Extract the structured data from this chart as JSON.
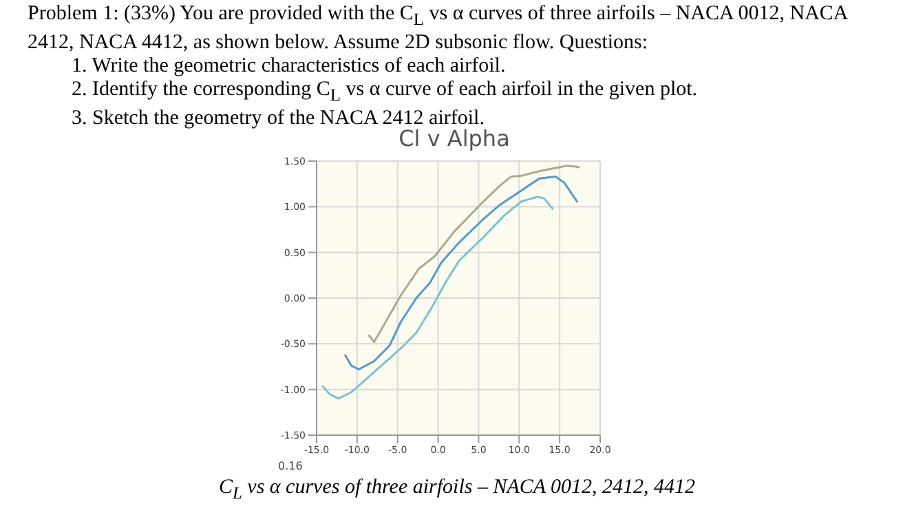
{
  "chart_data": {
    "type": "line",
    "title": "Cl v Alpha",
    "annotations": [
      "Problem 1: (33%) You are provided with the C$_{L}$ vs α curves of three airfoils – NACA 0012, NACA 2412, NACA 4412, as shown below. Assume 2D subsonic flow. Questions:",
      "1. Write the geometric characteristics of each airfoil.",
      "2. Identify the corresponding C$_{L}$ vs α curve of each airfoil in the given plot.",
      "3. Sketch the geometry of the NACA 2412 airfoil.",
      "0.16",
      "C$_{L}$ vs α curves of three airfoils – NACA 0012, 2412, 4412"
    ],
    "xlim": [
      -15,
      20
    ],
    "xticks": [
      {
        "value": -15,
        "label": "-15.0"
      },
      {
        "value": -10,
        "label": "-10.0"
      },
      {
        "value": -5,
        "label": "-5.0"
      },
      {
        "value": 0,
        "label": "0.0"
      },
      {
        "value": 5,
        "label": "5.0"
      },
      {
        "value": 10,
        "label": "10.0"
      },
      {
        "value": 15,
        "label": "15.0"
      },
      {
        "value": 20,
        "label": "20.0"
      }
    ],
    "ylim": [
      -1.5,
      1.5
    ],
    "yticks": [
      {
        "value": -1.5,
        "label": "-1.50"
      },
      {
        "value": -1,
        "label": "-1.00"
      },
      {
        "value": -0.5,
        "label": "-0.50"
      },
      {
        "value": 0,
        "label": "0.00"
      },
      {
        "value": 0.5,
        "label": "0.50"
      },
      {
        "value": 1,
        "label": "1.00"
      },
      {
        "value": 1.5,
        "label": "1.50"
      }
    ],
    "grid": true,
    "marker": "none",
    "line_style": "solid",
    "series": [
      {
        "color": "#a9ab8a",
        "x": [
          -8.6,
          -7.9,
          -6.8,
          -4.6,
          -2.4,
          -0.4,
          2.0,
          5.4,
          7.6,
          9.0,
          10.3,
          12.5,
          14.8,
          15.9,
          17.0,
          17.5
        ],
        "values": [
          -0.4,
          -0.48,
          -0.31,
          0.03,
          0.32,
          0.46,
          0.73,
          1.04,
          1.23,
          1.33,
          1.34,
          1.39,
          1.43,
          1.45,
          1.44,
          1.43
        ]
      },
      {
        "color": "#559acb",
        "x": [
          -11.5,
          -10.7,
          -9.8,
          -7.9,
          -6.0,
          -4.6,
          -2.7,
          -1.0,
          0.4,
          2.6,
          5.4,
          7.6,
          10.3,
          12.5,
          14.5,
          15.6,
          17.2
        ],
        "values": [
          -0.62,
          -0.74,
          -0.78,
          -0.69,
          -0.52,
          -0.26,
          0.0,
          0.17,
          0.39,
          0.61,
          0.85,
          1.02,
          1.18,
          1.31,
          1.33,
          1.26,
          1.05
        ]
      },
      {
        "color": "#7cc2cc",
        "x": [
          -14.3,
          -13.4,
          -12.3,
          -10.7,
          -7.9,
          -4.6,
          -2.7,
          -0.7,
          0.9,
          2.6,
          5.4,
          8.1,
          10.3,
          12.3,
          13.1,
          14.2
        ],
        "values": [
          -0.96,
          -1.05,
          -1.1,
          -1.03,
          -0.81,
          -0.55,
          -0.38,
          -0.09,
          0.17,
          0.41,
          0.65,
          0.9,
          1.06,
          1.11,
          1.09,
          0.97
        ]
      }
    ]
  }
}
